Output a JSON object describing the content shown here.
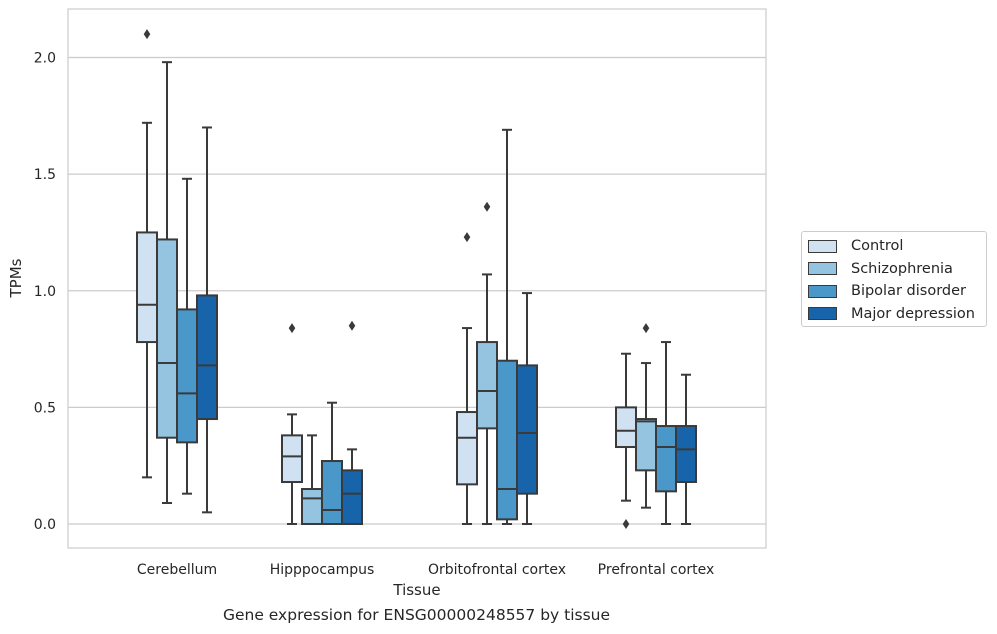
{
  "caption": "Gene expression for ENSG00000248557 by tissue",
  "chart_data": {
    "type": "box",
    "title": "",
    "xlabel": "Tissue",
    "ylabel": "TPMs",
    "ylim": [
      -0.1,
      2.22
    ],
    "yticks": [
      0.0,
      0.5,
      1.0,
      1.5,
      2.0
    ],
    "ytick_labels": [
      "0.0",
      "0.5",
      "1.0",
      "1.5",
      "2.0"
    ],
    "grid": "horizontal",
    "legend_position": "right",
    "categories": [
      "Cerebellum",
      "Hipppocampus",
      "Orbitofrontal cortex",
      "Prefrontal cortex"
    ],
    "series": [
      {
        "name": "Control",
        "color": "#d0e1f2",
        "boxes": [
          {
            "whisker_low": 0.2,
            "q1": 0.78,
            "median": 0.94,
            "q3": 1.25,
            "whisker_high": 1.72,
            "outliers": [
              2.1
            ]
          },
          {
            "whisker_low": 0.0,
            "q1": 0.18,
            "median": 0.29,
            "q3": 0.38,
            "whisker_high": 0.47,
            "outliers": [
              0.84
            ]
          },
          {
            "whisker_low": 0.0,
            "q1": 0.17,
            "median": 0.37,
            "q3": 0.48,
            "whisker_high": 0.84,
            "outliers": [
              1.23
            ]
          },
          {
            "whisker_low": 0.1,
            "q1": 0.33,
            "median": 0.4,
            "q3": 0.5,
            "whisker_high": 0.73,
            "outliers": [
              0.0
            ]
          }
        ]
      },
      {
        "name": "Schizophrenia",
        "color": "#94c4df",
        "boxes": [
          {
            "whisker_low": 0.09,
            "q1": 0.37,
            "median": 0.69,
            "q3": 1.22,
            "whisker_high": 1.98,
            "outliers": []
          },
          {
            "whisker_low": 0.0,
            "q1": 0.0,
            "median": 0.11,
            "q3": 0.15,
            "whisker_high": 0.38,
            "outliers": []
          },
          {
            "whisker_low": 0.0,
            "q1": 0.41,
            "median": 0.57,
            "q3": 0.78,
            "whisker_high": 1.07,
            "outliers": [
              1.36
            ]
          },
          {
            "whisker_low": 0.07,
            "q1": 0.23,
            "median": 0.44,
            "q3": 0.45,
            "whisker_high": 0.69,
            "outliers": [
              0.84
            ]
          }
        ]
      },
      {
        "name": "Bipolar disorder",
        "color": "#4a98c9",
        "boxes": [
          {
            "whisker_low": 0.13,
            "q1": 0.35,
            "median": 0.56,
            "q3": 0.92,
            "whisker_high": 1.48,
            "outliers": []
          },
          {
            "whisker_low": 0.0,
            "q1": 0.0,
            "median": 0.06,
            "q3": 0.27,
            "whisker_high": 0.52,
            "outliers": []
          },
          {
            "whisker_low": 0.0,
            "q1": 0.02,
            "median": 0.15,
            "q3": 0.7,
            "whisker_high": 1.69,
            "outliers": []
          },
          {
            "whisker_low": 0.0,
            "q1": 0.14,
            "median": 0.33,
            "q3": 0.42,
            "whisker_high": 0.78,
            "outliers": []
          }
        ]
      },
      {
        "name": "Major depression",
        "color": "#1764ab",
        "boxes": [
          {
            "whisker_low": 0.05,
            "q1": 0.45,
            "median": 0.68,
            "q3": 0.98,
            "whisker_high": 1.7,
            "outliers": []
          },
          {
            "whisker_low": 0.0,
            "q1": 0.0,
            "median": 0.13,
            "q3": 0.23,
            "whisker_high": 0.32,
            "outliers": [
              0.85
            ]
          },
          {
            "whisker_low": 0.0,
            "q1": 0.13,
            "median": 0.39,
            "q3": 0.68,
            "whisker_high": 0.99,
            "outliers": []
          },
          {
            "whisker_low": 0.0,
            "q1": 0.18,
            "median": 0.32,
            "q3": 0.42,
            "whisker_high": 0.64,
            "outliers": []
          }
        ]
      }
    ]
  }
}
